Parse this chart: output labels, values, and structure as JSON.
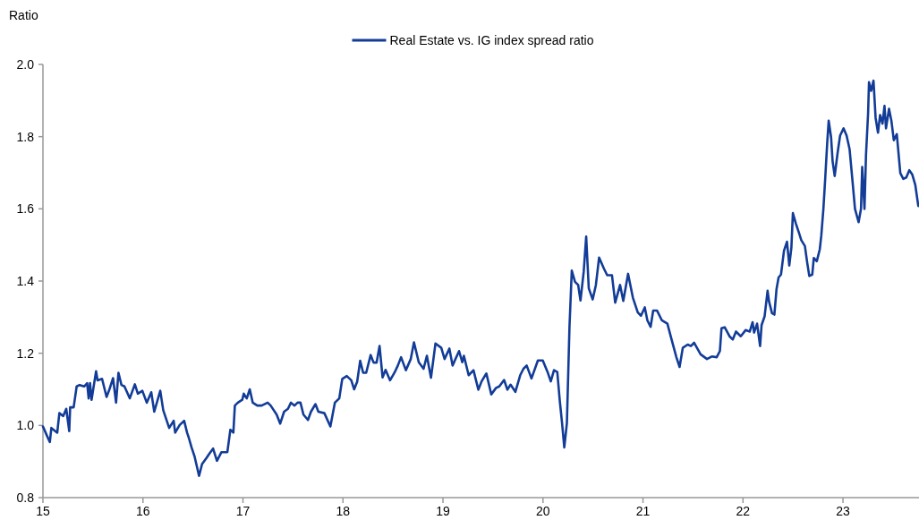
{
  "chart_data": {
    "type": "line",
    "ylabel": "Ratio",
    "legend": "top",
    "line_style": "solid",
    "marker": "none",
    "xlim": [
      15,
      23.76
    ],
    "xticks": [
      15,
      16,
      17,
      18,
      19,
      20,
      21,
      22,
      23
    ],
    "ylim": [
      0.8,
      2.0
    ],
    "yticks": [
      {
        "value": 0.8,
        "label": "0.8"
      },
      {
        "value": 1,
        "label": "1.0"
      },
      {
        "value": 1.2,
        "label": "1.2"
      },
      {
        "value": 1.4,
        "label": "1.4"
      },
      {
        "value": 1.6,
        "label": "1.6"
      },
      {
        "value": 1.8,
        "label": "1.8"
      },
      {
        "value": 2,
        "label": "2.0"
      }
    ],
    "series": [
      {
        "name": "Real Estate vs. IG index spread ratio",
        "color": "#123c97",
        "x": [
          15.0,
          15.039,
          15.069,
          15.084,
          15.143,
          15.164,
          15.203,
          15.233,
          15.263,
          15.272,
          15.307,
          15.337,
          15.367,
          15.412,
          15.442,
          15.457,
          15.471,
          15.486,
          15.531,
          15.546,
          15.591,
          15.636,
          15.665,
          15.701,
          15.731,
          15.755,
          15.785,
          15.815,
          15.868,
          15.919,
          15.949,
          15.994,
          16.038,
          16.083,
          16.113,
          16.173,
          16.203,
          16.262,
          16.307,
          16.322,
          16.367,
          16.412,
          16.441,
          16.456,
          16.486,
          16.516,
          16.561,
          16.591,
          16.635,
          16.665,
          16.701,
          16.74,
          16.785,
          16.844,
          16.874,
          16.904,
          16.919,
          16.949,
          16.993,
          17.008,
          17.038,
          17.068,
          17.098,
          17.143,
          17.187,
          17.247,
          17.277,
          17.337,
          17.372,
          17.411,
          17.45,
          17.48,
          17.516,
          17.546,
          17.575,
          17.605,
          17.65,
          17.68,
          17.725,
          17.754,
          17.814,
          17.874,
          17.919,
          17.963,
          17.993,
          18.038,
          18.083,
          18.112,
          18.142,
          18.172,
          18.202,
          18.232,
          18.277,
          18.306,
          18.336,
          18.366,
          18.396,
          18.426,
          18.471,
          18.515,
          18.549,
          18.581,
          18.629,
          18.678,
          18.71,
          18.758,
          18.806,
          18.839,
          18.88,
          18.925,
          18.983,
          19.016,
          19.064,
          19.096,
          19.161,
          19.193,
          19.209,
          19.257,
          19.305,
          19.354,
          19.386,
          19.434,
          19.483,
          19.531,
          19.563,
          19.611,
          19.644,
          19.676,
          19.724,
          19.772,
          19.805,
          19.837,
          19.885,
          19.949,
          19.998,
          20.046,
          20.078,
          20.11,
          20.143,
          20.168,
          20.191,
          20.213,
          20.239,
          20.265,
          20.288,
          20.32,
          20.352,
          20.375,
          20.407,
          20.432,
          20.458,
          20.497,
          20.529,
          20.561,
          20.61,
          20.642,
          20.69,
          20.722,
          20.771,
          20.803,
          20.851,
          20.899,
          20.948,
          20.98,
          21.018,
          21.044,
          21.076,
          21.102,
          21.141,
          21.189,
          21.244,
          21.286,
          21.334,
          21.366,
          21.398,
          21.447,
          21.479,
          21.511,
          21.576,
          21.64,
          21.688,
          21.737,
          21.769,
          21.785,
          21.817,
          21.865,
          21.898,
          21.93,
          21.978,
          22.026,
          22.068,
          22.096,
          22.111,
          22.141,
          22.171,
          22.186,
          22.216,
          22.246,
          22.26,
          22.29,
          22.314,
          22.335,
          22.356,
          22.38,
          22.41,
          22.44,
          22.463,
          22.484,
          22.499,
          22.529,
          22.559,
          22.583,
          22.619,
          22.642,
          22.663,
          22.693,
          22.708,
          22.738,
          22.768,
          22.783,
          22.804,
          22.822,
          22.842,
          22.857,
          22.881,
          22.896,
          22.917,
          22.947,
          22.971,
          23.006,
          23.036,
          23.066,
          23.096,
          23.12,
          23.156,
          23.18,
          23.192,
          23.215,
          23.23,
          23.251,
          23.26,
          23.281,
          23.305,
          23.326,
          23.35,
          23.371,
          23.395,
          23.415,
          23.43,
          23.46,
          23.484,
          23.508,
          23.538,
          23.573,
          23.603,
          23.633,
          23.663,
          23.693,
          23.723,
          23.753
        ],
        "values": [
          0.997,
          0.972,
          0.954,
          0.993,
          0.98,
          1.034,
          1.026,
          1.046,
          0.984,
          1.05,
          1.05,
          1.108,
          1.112,
          1.108,
          1.117,
          1.075,
          1.117,
          1.071,
          1.15,
          1.125,
          1.129,
          1.079,
          1.1,
          1.131,
          1.063,
          1.146,
          1.112,
          1.108,
          1.075,
          1.114,
          1.088,
          1.096,
          1.063,
          1.092,
          1.038,
          1.096,
          1.042,
          0.993,
          1.013,
          0.98,
          1.001,
          1.013,
          0.98,
          0.968,
          0.939,
          0.914,
          0.86,
          0.893,
          0.91,
          0.922,
          0.936,
          0.902,
          0.926,
          0.926,
          0.988,
          0.98,
          1.055,
          1.063,
          1.071,
          1.088,
          1.075,
          1.1,
          1.063,
          1.055,
          1.055,
          1.063,
          1.055,
          1.03,
          1.005,
          1.038,
          1.046,
          1.063,
          1.055,
          1.063,
          1.063,
          1.03,
          1.015,
          1.038,
          1.059,
          1.038,
          1.034,
          0.997,
          1.063,
          1.075,
          1.129,
          1.137,
          1.125,
          1.1,
          1.121,
          1.179,
          1.146,
          1.146,
          1.195,
          1.174,
          1.174,
          1.22,
          1.133,
          1.154,
          1.125,
          1.146,
          1.166,
          1.189,
          1.153,
          1.184,
          1.23,
          1.175,
          1.157,
          1.193,
          1.132,
          1.227,
          1.215,
          1.184,
          1.213,
          1.166,
          1.206,
          1.175,
          1.193,
          1.139,
          1.153,
          1.099,
          1.122,
          1.144,
          1.086,
          1.104,
          1.108,
          1.126,
          1.099,
          1.113,
          1.093,
          1.139,
          1.157,
          1.166,
          1.13,
          1.18,
          1.18,
          1.148,
          1.122,
          1.153,
          1.148,
          1.068,
          1.006,
          0.939,
          1.006,
          1.273,
          1.429,
          1.398,
          1.389,
          1.346,
          1.425,
          1.523,
          1.38,
          1.349,
          1.389,
          1.465,
          1.434,
          1.416,
          1.416,
          1.34,
          1.389,
          1.345,
          1.42,
          1.354,
          1.313,
          1.304,
          1.327,
          1.291,
          1.273,
          1.318,
          1.318,
          1.291,
          1.282,
          1.238,
          1.189,
          1.162,
          1.215,
          1.224,
          1.22,
          1.229,
          1.197,
          1.184,
          1.191,
          1.189,
          1.206,
          1.269,
          1.272,
          1.247,
          1.238,
          1.26,
          1.247,
          1.264,
          1.26,
          1.286,
          1.257,
          1.282,
          1.22,
          1.278,
          1.302,
          1.373,
          1.344,
          1.311,
          1.307,
          1.377,
          1.41,
          1.418,
          1.484,
          1.509,
          1.443,
          1.493,
          1.588,
          1.559,
          1.534,
          1.513,
          1.497,
          1.451,
          1.414,
          1.418,
          1.464,
          1.455,
          1.488,
          1.526,
          1.6,
          1.683,
          1.782,
          1.844,
          1.798,
          1.732,
          1.691,
          1.757,
          1.803,
          1.823,
          1.803,
          1.765,
          1.674,
          1.6,
          1.563,
          1.6,
          1.716,
          1.6,
          1.749,
          1.865,
          1.951,
          1.927,
          1.955,
          1.852,
          1.811,
          1.86,
          1.836,
          1.885,
          1.823,
          1.877,
          1.844,
          1.79,
          1.807,
          1.699,
          1.683,
          1.687,
          1.707,
          1.695,
          1.666,
          1.608
        ]
      }
    ]
  }
}
